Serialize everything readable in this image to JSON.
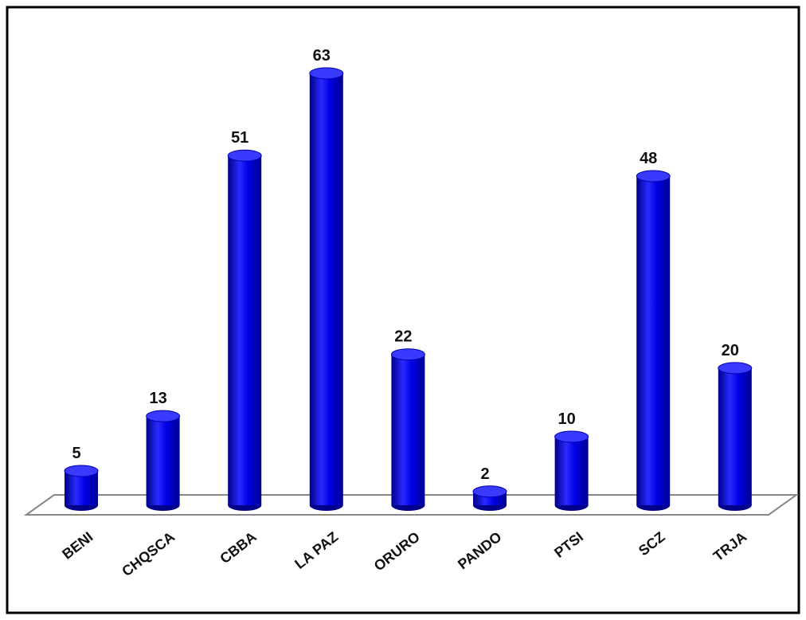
{
  "chart_data": {
    "type": "bar",
    "categories": [
      "BENI",
      "CHQSCA",
      "CBBA",
      "LA PAZ",
      "ORURO",
      "PANDO",
      "PTSI",
      "SCZ",
      "TRJA"
    ],
    "values": [
      5,
      13,
      51,
      63,
      22,
      2,
      10,
      48,
      20
    ],
    "color": "#0000e6"
  }
}
